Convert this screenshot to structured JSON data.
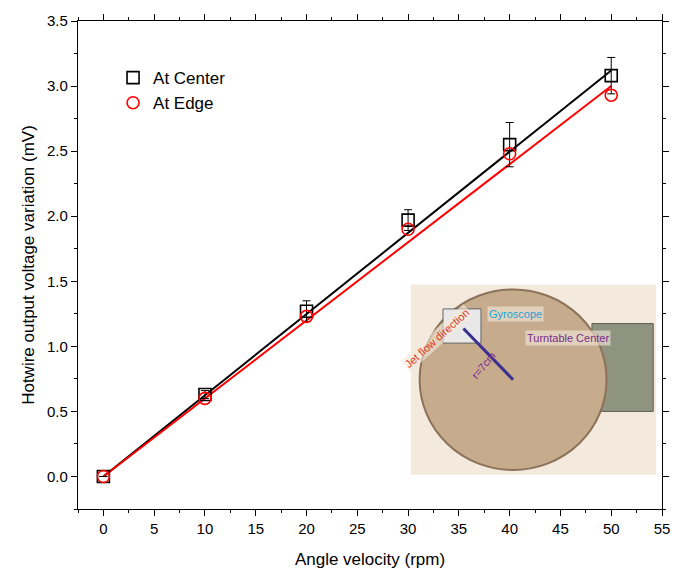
{
  "chart_data": {
    "type": "scatter",
    "x_label": "Angle velocity (rpm)",
    "y_label": "Hotwire output voltage variation (mV)",
    "xlim": [
      -2.5,
      55
    ],
    "xticks": [
      0,
      5,
      10,
      15,
      20,
      25,
      30,
      35,
      40,
      45,
      50,
      55
    ],
    "ylim": [
      -0.25,
      3.5
    ],
    "yticks": [
      {
        "value": 0,
        "label": "0.0"
      },
      {
        "value": 0.5,
        "label": "0.5"
      },
      {
        "value": 1,
        "label": "1.0"
      },
      {
        "value": 1.5,
        "label": "1.5"
      },
      {
        "value": 2,
        "label": "2.0"
      },
      {
        "value": 2.5,
        "label": "2.5"
      },
      {
        "value": 3,
        "label": "3.0"
      },
      {
        "value": 3.5,
        "label": "3.5"
      }
    ],
    "grid": false,
    "legend": "upper left",
    "x": [
      0,
      10,
      20,
      30,
      40,
      50
    ],
    "series": [
      {
        "name": "At Center",
        "color": "#000000",
        "marker": "square-open",
        "values": [
          0,
          0.63,
          1.27,
          1.97,
          2.55,
          3.08
        ],
        "error": [
          0,
          0.03,
          0.08,
          0.08,
          0.17,
          0.14
        ],
        "fit": {
          "x": [
            0,
            50
          ],
          "values": [
            0,
            3.12
          ]
        }
      },
      {
        "name": "At Edge",
        "color": "#ff0000",
        "marker": "circle-open",
        "values": [
          0,
          0.6,
          1.23,
          1.9,
          2.48,
          2.93
        ],
        "fit": {
          "x": [
            0,
            50
          ],
          "values": [
            0,
            3.0
          ]
        }
      }
    ],
    "inset": {
      "labels": [
        {
          "text": "Gyroscope",
          "color": "#1fa2d6"
        },
        {
          "text": "Jet flow direction",
          "color": "#e23a1e"
        },
        {
          "text": "Turntable Center",
          "color": "#7a2c8c"
        },
        {
          "text": "r=7cm",
          "color": "#7a2c8c"
        }
      ]
    }
  }
}
